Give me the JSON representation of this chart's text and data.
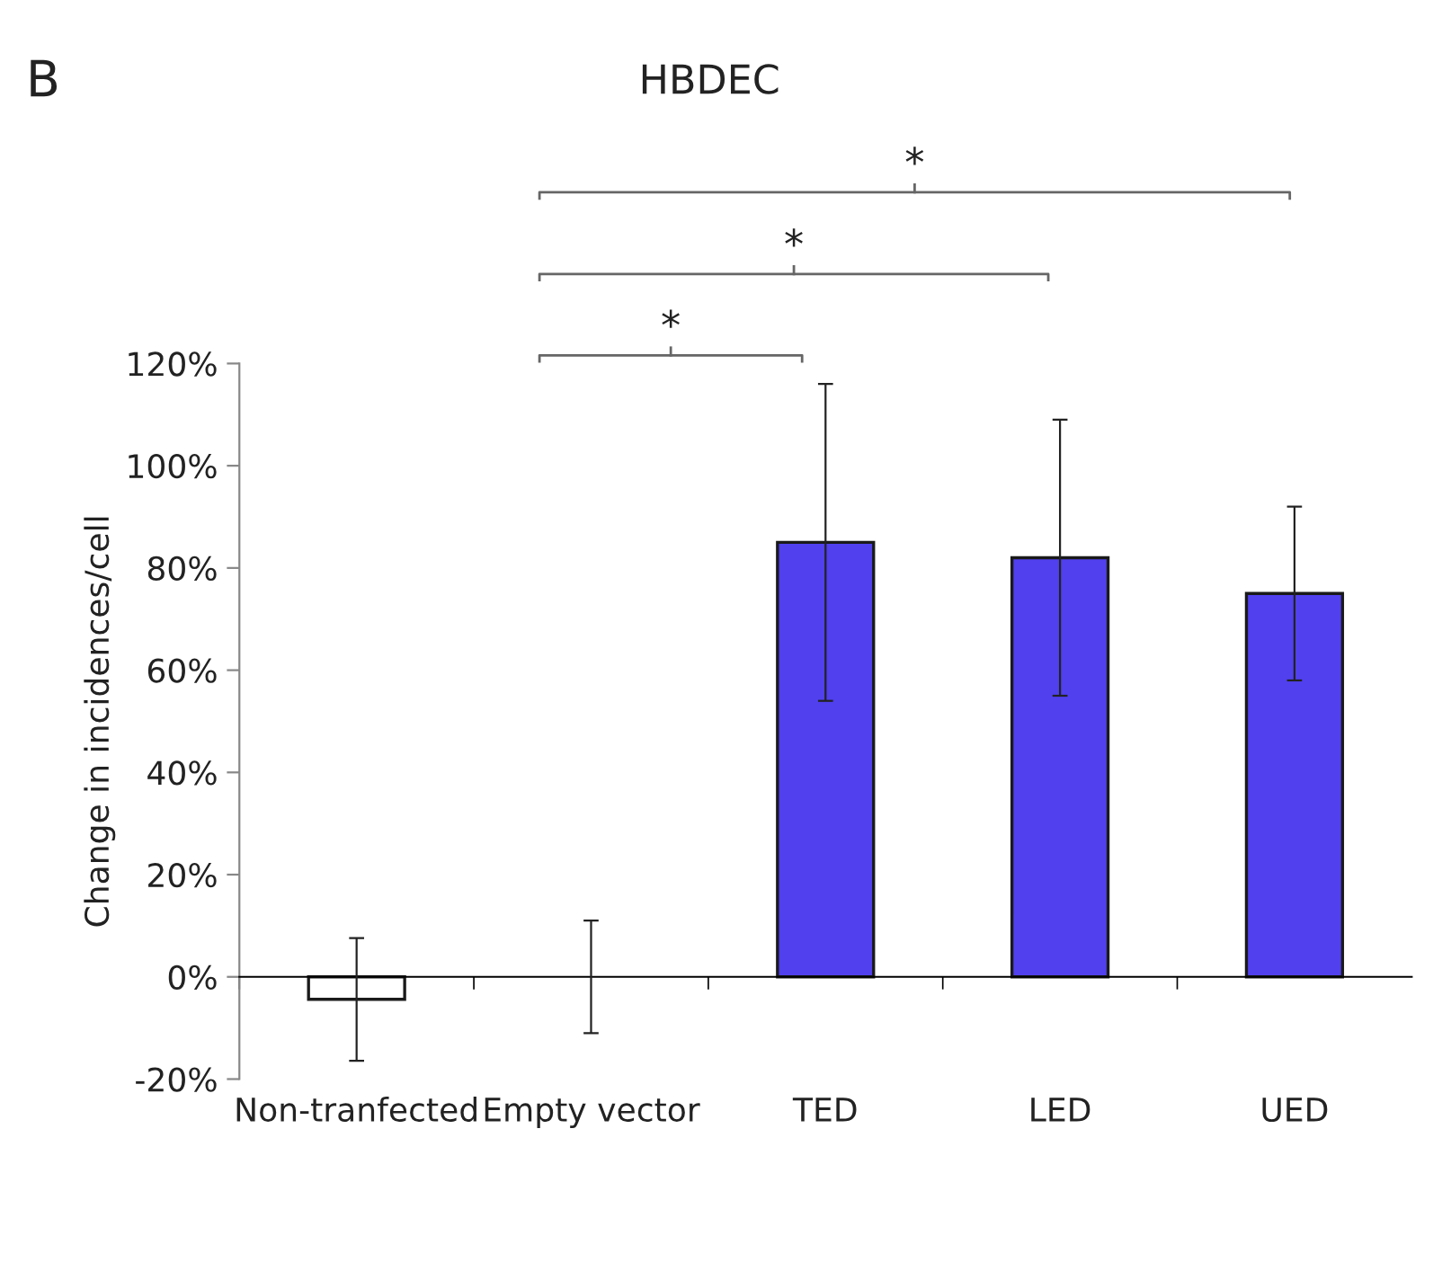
{
  "chart_data": {
    "type": "bar",
    "title": "HBDEC",
    "ylabel": "Change in incidences/cell",
    "categories": [
      "Non-tranfected",
      "Empty vector",
      "TED",
      "LED",
      "UED"
    ],
    "values": [
      -4.4,
      0,
      85,
      82,
      75
    ],
    "colors": [
      "#ffffff",
      "#ffffff",
      "#5040ee",
      "#5040ee",
      "#5040ee"
    ],
    "errors": [
      12,
      11,
      31,
      27,
      17
    ],
    "ylim": [
      -20,
      120
    ],
    "yticks": [
      {
        "value": -20,
        "label": "-20%"
      },
      {
        "value": 0,
        "label": "0%"
      },
      {
        "value": 20,
        "label": "20%"
      },
      {
        "value": 40,
        "label": "40%"
      },
      {
        "value": 60,
        "label": "60%"
      },
      {
        "value": 80,
        "label": "80%"
      },
      {
        "value": 100,
        "label": "100%"
      },
      {
        "value": 120,
        "label": "120%"
      }
    ],
    "legend": false,
    "annotations": [
      "B",
      "*",
      "*",
      "*"
    ]
  }
}
